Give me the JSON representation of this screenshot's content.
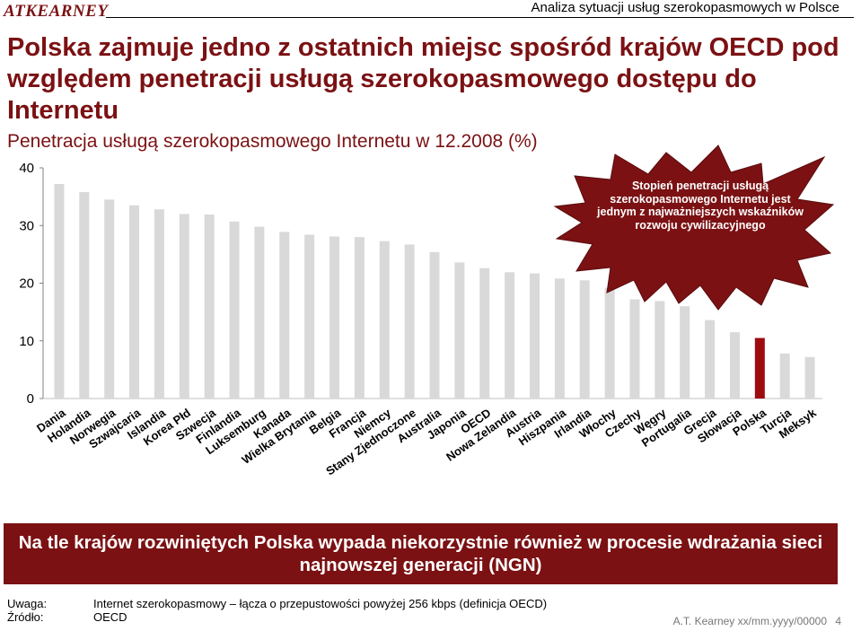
{
  "header": {
    "logo_text": "ATKEARNEY",
    "title": "Analiza sytuacji usług szerokopasmowych w Polsce"
  },
  "slide": {
    "title": "Polska zajmuje jedno z ostatnich miejsc spośród krajów OECD pod względem penetracji usługą szerokopasmowego dostępu do Internetu",
    "subtitle": "Penetracja usługą szerokopasmowego Internetu w 12.2008 (%)"
  },
  "callout": {
    "text": "Stopień penetracji usługą szerokopasmowego Internetu jest jednym z najważniejszych wskaźników rozwoju cywilizacyjnego"
  },
  "banner": {
    "text": "Na tle krajów rozwiniętych Polska wypada niekorzystnie również w procesie wdrażania sieci najnowszej generacji (NGN)"
  },
  "footnotes": {
    "note_label": "Uwaga:",
    "note_text": "Internet szerokopasmowy – łącza o przepustowości powyżej 256 kbps (definicja OECD)",
    "source_label": "Źródło:",
    "source_text": "OECD"
  },
  "footer": {
    "text": "A.T. Kearney xx/mm.yyyy/00000",
    "page": "4"
  },
  "colors": {
    "brand": "#7b1113",
    "bar_default": "#d9d9d9",
    "bar_highlight": "#9e0b0f"
  },
  "chart_data": {
    "type": "bar",
    "title": "Penetracja usługą szerokopasmowego Internetu w 12.2008 (%)",
    "xlabel": "",
    "ylabel": "",
    "ylim": [
      0,
      40
    ],
    "yticks": [
      0,
      10,
      20,
      30,
      40
    ],
    "grid": false,
    "categories": [
      "Dania",
      "Holandia",
      "Norwegia",
      "Szwajcaria",
      "Islandia",
      "Korea Płd",
      "Szwecja",
      "Finlandia",
      "Luksemburg",
      "Kanada",
      "Wielka Brytania",
      "Belgia",
      "Francja",
      "Niemcy",
      "Stany Zjednoczone",
      "Australia",
      "Japonia",
      "OECD",
      "Nowa Zelandia",
      "Austria",
      "Hiszpania",
      "Irlandia",
      "Włochy",
      "Czechy",
      "Węgry",
      "Portugalia",
      "Grecja",
      "Słowacja",
      "Polska",
      "Turcja",
      "Meksyk"
    ],
    "values": [
      37.2,
      35.8,
      34.5,
      33.5,
      32.8,
      32.0,
      31.9,
      30.7,
      29.8,
      28.9,
      28.4,
      28.1,
      28.0,
      27.3,
      26.7,
      25.4,
      23.6,
      22.6,
      21.9,
      21.7,
      20.8,
      20.5,
      19.2,
      17.2,
      16.9,
      16.0,
      13.6,
      11.5,
      10.5,
      7.8,
      7.2
    ],
    "highlight": "Polska"
  }
}
